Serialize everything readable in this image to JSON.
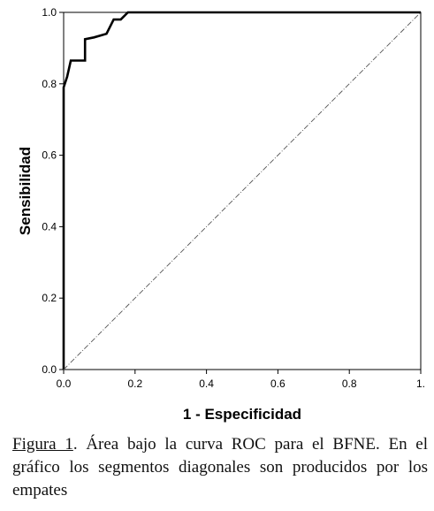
{
  "chart_data": {
    "type": "line",
    "title": "",
    "xlabel": "1 - Especificidad",
    "ylabel": "Sensibilidad",
    "xlim": [
      0,
      1
    ],
    "ylim": [
      0,
      1
    ],
    "x_ticks": [
      "0.0",
      "0.2",
      "0.4",
      "0.6",
      "0.8",
      "1."
    ],
    "y_ticks": [
      "0.0",
      "0.2",
      "0.4",
      "0.6",
      "0.8",
      "1.0"
    ],
    "grid": false,
    "legend": "none",
    "series": [
      {
        "style": "solid",
        "color": "#000000",
        "points": [
          [
            0.0,
            0.0
          ],
          [
            0.0,
            0.79
          ],
          [
            0.01,
            0.82
          ],
          [
            0.02,
            0.865
          ],
          [
            0.06,
            0.865
          ],
          [
            0.06,
            0.925
          ],
          [
            0.085,
            0.93
          ],
          [
            0.12,
            0.94
          ],
          [
            0.14,
            0.98
          ],
          [
            0.16,
            0.98
          ],
          [
            0.18,
            1.0
          ],
          [
            1.0,
            1.0
          ]
        ]
      },
      {
        "style": "dash-dot",
        "color": "#555555",
        "points": [
          [
            0.0,
            0.0
          ],
          [
            1.0,
            1.0
          ]
        ]
      }
    ]
  },
  "caption": {
    "label": "Figura 1",
    "text": ". Área bajo la curva ROC para el BFNE. En el gráfico los segmentos diagonales son producidos por los empates"
  }
}
